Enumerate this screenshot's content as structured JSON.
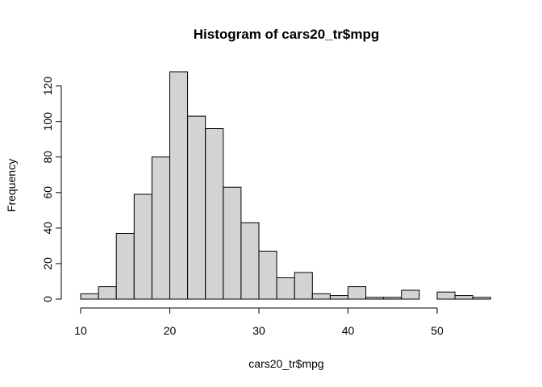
{
  "chart_data": {
    "type": "bar",
    "title": "Histogram of cars20_tr$mpg",
    "xlabel": "cars20_tr$mpg",
    "ylabel": "Frequency",
    "bin_edges": [
      10,
      12,
      14,
      16,
      18,
      20,
      22,
      24,
      26,
      28,
      30,
      32,
      34,
      36,
      38,
      40,
      42,
      44,
      46,
      48,
      50,
      52,
      54,
      56
    ],
    "values": [
      3,
      7,
      37,
      59,
      80,
      128,
      103,
      96,
      63,
      43,
      27,
      12,
      15,
      3,
      2,
      7,
      1,
      1,
      5,
      0,
      4,
      2,
      1
    ],
    "xlim": [
      10,
      56
    ],
    "ylim": [
      0,
      128
    ],
    "x_ticks": [
      10,
      20,
      30,
      40,
      50
    ],
    "y_ticks": [
      0,
      20,
      40,
      60,
      80,
      100,
      120
    ],
    "bar_fill": "#d3d3d3",
    "bar_stroke": "#000000",
    "grid": false,
    "legend": "none"
  }
}
